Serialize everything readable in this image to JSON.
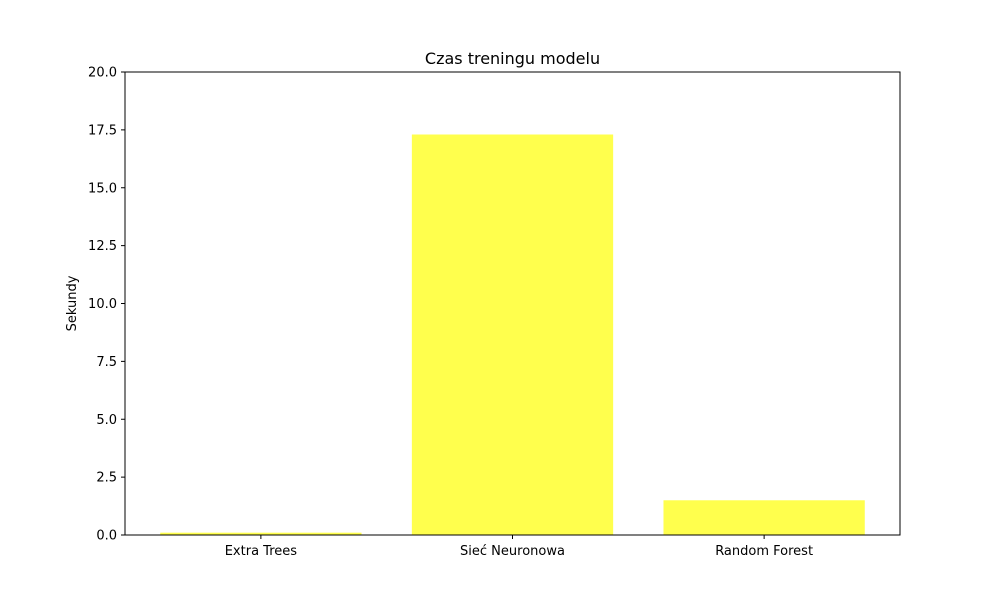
{
  "chart_data": {
    "type": "bar",
    "title": "Czas treningu modelu",
    "xlabel": "",
    "ylabel": "Sekundy",
    "categories": [
      "Extra Trees",
      "Sieć Neuronowa",
      "Random Forest"
    ],
    "values": [
      0.1,
      17.3,
      1.5
    ],
    "ylim": [
      0,
      20
    ],
    "yticks": [
      "0.0",
      "2.5",
      "5.0",
      "7.5",
      "10.0",
      "12.5",
      "15.0",
      "17.5",
      "20.0"
    ],
    "grid": false,
    "legend": "none",
    "bar_color": "#ffff4d"
  }
}
